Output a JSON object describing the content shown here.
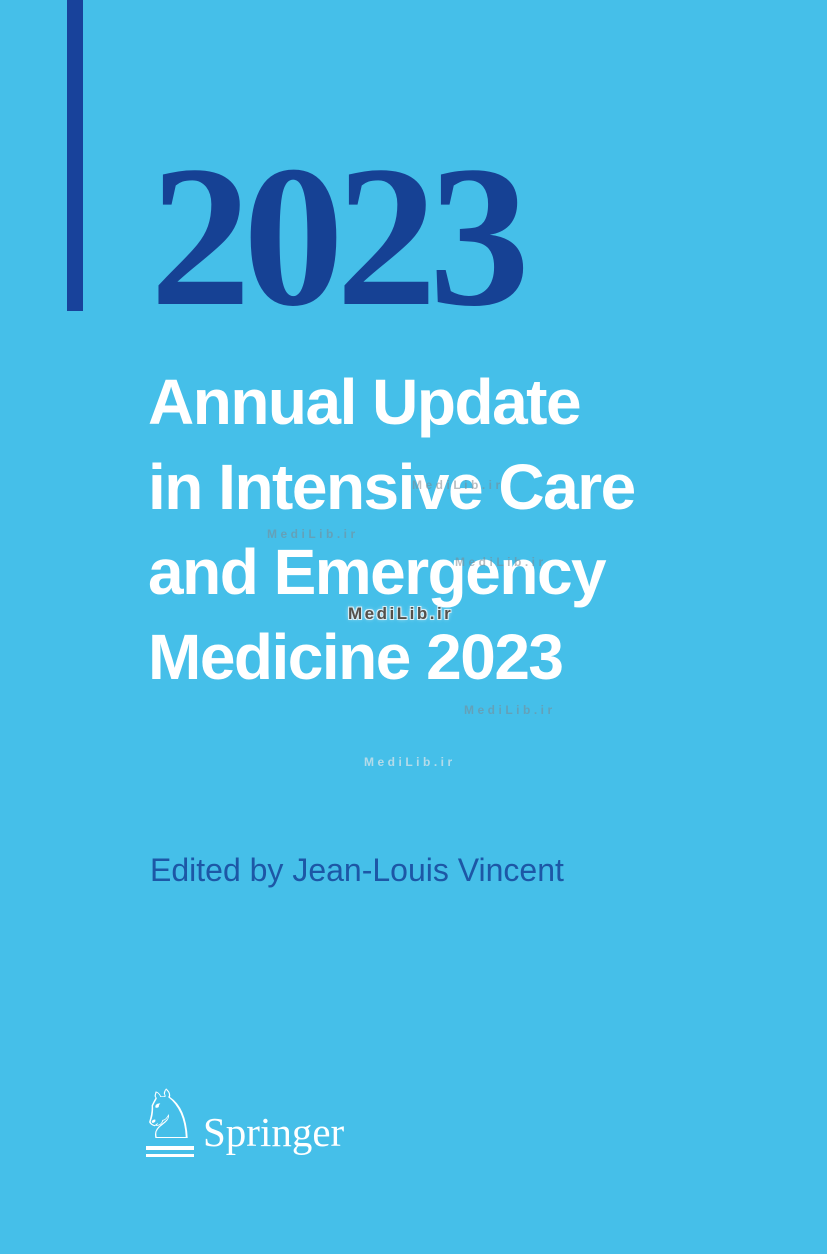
{
  "cover": {
    "year": "2023",
    "title_lines": [
      "Annual Update",
      "in Intensive Care",
      "and Emergency",
      "Medicine 2023"
    ],
    "editor": "Edited by Jean-Louis Vincent",
    "publisher": "Springer",
    "publisher_icon_glyph": "♘"
  },
  "watermark": {
    "text": "MediLib.ir"
  },
  "colors": {
    "background": "#45bfe9",
    "accent_navy": "#18429b",
    "year_navy": "#164194",
    "title_white": "#ffffff",
    "editor_blue": "#1d57a6",
    "watermark_dark": "#55504a",
    "watermark_faint": "#7d8a92"
  }
}
